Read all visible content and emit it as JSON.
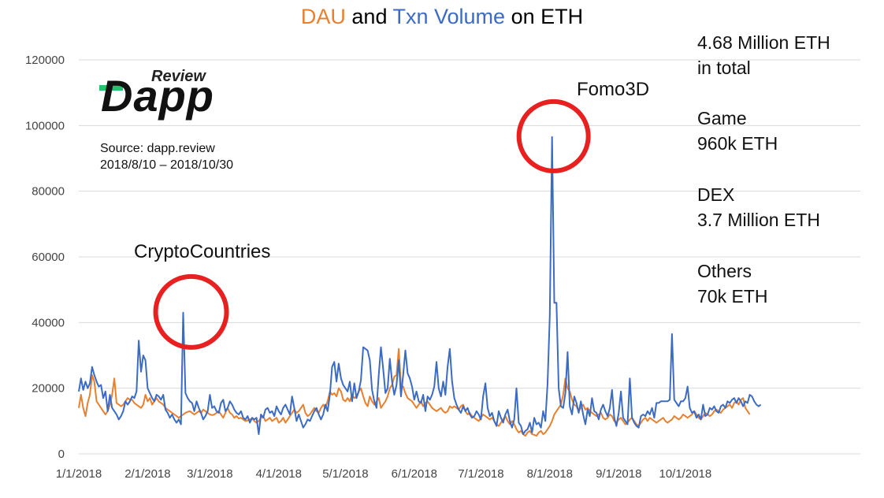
{
  "title": {
    "part1": "DAU",
    "part2": " and ",
    "part3": "Txn Volume",
    "part4": " on ETH"
  },
  "logo": {
    "mark": "Dapp",
    "sub": "Review"
  },
  "source": {
    "line1": "Source: dapp.review",
    "line2": "2018/8/10 – 2018/10/30"
  },
  "annotations": [
    {
      "text": "CryptoCountries"
    },
    {
      "text": "Fomo3D"
    }
  ],
  "info": {
    "total_line1": "4.68 Million ETH",
    "total_line2": "in total",
    "game_line1": "Game",
    "game_line2": "960k ETH",
    "dex_line1": "DEX",
    "dex_line2": "3.7 Million  ETH",
    "others_line1": "Others",
    "others_line2": "70k ETH"
  },
  "colors": {
    "dau": "#E8802F",
    "txn": "#3C6BC4",
    "highlight": "#E8201F",
    "grid": "#D9D9D9",
    "logo_accent": "#23C36F"
  },
  "chart_data": {
    "type": "line",
    "title": "DAU and Txn Volume on ETH",
    "ylim": [
      0,
      120000
    ],
    "yticks": [
      "0",
      "20000",
      "40000",
      "60000",
      "80000",
      "100000",
      "120000"
    ],
    "xticks": [
      "1/1/2018",
      "2/1/2018",
      "3/1/2018",
      "4/1/2018",
      "5/1/2018",
      "6/1/2018",
      "7/1/2018",
      "8/1/2018",
      "9/1/2018",
      "10/1/2018"
    ],
    "grid": true,
    "x_start": "2018-01-01",
    "series": [
      {
        "name": "DAU",
        "values": [
          14000,
          18000,
          14000,
          11500,
          15500,
          18000,
          24000,
          22000,
          16000,
          15000,
          14000,
          13000,
          12000,
          13000,
          15000,
          18000,
          23000,
          15500,
          15000,
          14500,
          15000,
          16000,
          17000,
          16500,
          16500,
          15500,
          15000,
          14500,
          14000,
          15000,
          18000,
          16000,
          17000,
          15000,
          16000,
          17000,
          16000,
          15500,
          15000,
          14000,
          13500,
          13000,
          12500,
          12000,
          11500,
          11000,
          11500,
          12000,
          12500,
          12800,
          13000,
          12500,
          12000,
          12500,
          13000,
          12500,
          13500,
          13000,
          12500,
          12000,
          11800,
          12000,
          12500,
          13000,
          12000,
          11000,
          12500,
          14000,
          12500,
          12000,
          11000,
          11500,
          10800,
          11000,
          10500,
          10000,
          10200,
          10500,
          10800,
          10000,
          9500,
          10000,
          11000,
          11500,
          10000,
          10500,
          11000,
          10000,
          10500,
          11000,
          9500,
          10000,
          11000,
          9500,
          10500,
          11500,
          12500,
          13500,
          12500,
          13000,
          14000,
          15000,
          12500,
          11500,
          12000,
          13000,
          14000,
          13000,
          12500,
          14000,
          15000,
          14000,
          16000,
          19000,
          18000,
          18500,
          17500,
          20000,
          19000,
          16500,
          16000,
          17000,
          16000,
          18000,
          17000,
          17500,
          19000,
          20000,
          17500,
          15500,
          14500,
          17500,
          16000,
          15000,
          16000,
          17000,
          14000,
          15000,
          16000,
          17500,
          20000,
          21000,
          23500,
          24000,
          32000,
          21000,
          20500,
          18500,
          17000,
          16500,
          16000,
          15000,
          14000,
          15000,
          16000,
          14500,
          15500,
          16000,
          15000,
          14000,
          13500,
          13000,
          13500,
          14000,
          13000,
          12500,
          13000,
          14500,
          14000,
          14500,
          14000,
          13500,
          14500,
          15000,
          13000,
          12000,
          12500,
          11500,
          11000,
          10500,
          10000,
          11000,
          12000,
          11500,
          11000,
          10500,
          11000,
          10000,
          9000,
          8500,
          9500,
          10500,
          11500,
          10000,
          9000,
          10000,
          9000,
          7500,
          6500,
          7000,
          6000,
          5500,
          6500,
          7000,
          6000,
          5800,
          5500,
          6500,
          7000,
          6000,
          6500,
          7500,
          8500,
          10000,
          12000,
          13000,
          14000,
          15000,
          18000,
          23000,
          20000,
          19000,
          16500,
          15000,
          14500,
          13000,
          14000,
          15000,
          13500,
          14000,
          13000,
          12500,
          12000,
          11500,
          12000,
          12500,
          11000,
          10500,
          11000,
          12000,
          11500,
          10000,
          9500,
          10500,
          11000,
          10000,
          9000,
          9500,
          10500,
          11000,
          10000,
          9000,
          8500,
          9500,
          10500,
          11000,
          10000,
          11000,
          10500,
          10000,
          9500,
          10000,
          10500,
          11000,
          10000,
          9500,
          10000,
          10500,
          11500,
          11000,
          10500,
          11000,
          12000,
          11500,
          11000,
          11500,
          12000,
          13000,
          12000,
          11000,
          10500,
          11500,
          12500,
          12000,
          11500,
          12000,
          13000,
          13500,
          13000,
          12500,
          13500,
          14000,
          14500,
          15000,
          14000,
          15500,
          16000,
          15000,
          16500,
          17000,
          14000,
          13000,
          12000
        ]
      },
      {
        "name": "Txn Volume",
        "values": [
          19000,
          23000,
          19500,
          22000,
          20000,
          21500,
          26500,
          24000,
          22000,
          20500,
          21000,
          17000,
          19000,
          13000,
          18000,
          14000,
          13000,
          12000,
          10500,
          11500,
          13000,
          16000,
          15000,
          16000,
          17500,
          17000,
          19000,
          34500,
          25000,
          30000,
          28500,
          20000,
          18500,
          17000,
          16000,
          18000,
          17500,
          16500,
          18000,
          13500,
          12500,
          11000,
          12000,
          10500,
          9500,
          10500,
          9000,
          43000,
          18500,
          17000,
          16000,
          15500,
          13000,
          16000,
          14000,
          12500,
          10500,
          11500,
          13000,
          18000,
          14000,
          14500,
          13000,
          12500,
          15500,
          16500,
          13000,
          14000,
          16000,
          15000,
          13500,
          12500,
          12000,
          13000,
          11000,
          10500,
          11500,
          9500,
          11000,
          10500,
          11000,
          6000,
          12000,
          11000,
          13500,
          14000,
          12500,
          13000,
          11500,
          14500,
          13000,
          12000,
          14000,
          15000,
          13500,
          12000,
          17500,
          14000,
          10000,
          12000,
          10000,
          8000,
          9000,
          10500,
          10000,
          11500,
          13000,
          14000,
          12000,
          10500,
          12000,
          15000,
          13000,
          18000,
          26500,
          28000,
          22000,
          27500,
          23000,
          21000,
          20000,
          19000,
          22000,
          16000,
          21500,
          17000,
          19000,
          22500,
          32500,
          32000,
          31500,
          28500,
          19500,
          16000,
          14000,
          24000,
          32500,
          26000,
          18500,
          20000,
          29000,
          22000,
          18000,
          21000,
          28500,
          17500,
          24000,
          31500,
          24500,
          23000,
          20500,
          16500,
          19000,
          16000,
          15500,
          18000,
          13000,
          17500,
          16500,
          18000,
          20500,
          28000,
          20000,
          17500,
          22000,
          18000,
          26500,
          32000,
          22000,
          17000,
          15000,
          13500,
          12500,
          14500,
          13000,
          14000,
          12000,
          11000,
          11500,
          13000,
          12000,
          10500,
          17500,
          21500,
          14000,
          11500,
          12500,
          10000,
          8500,
          13000,
          11000,
          9500,
          12000,
          13500,
          10000,
          8000,
          10500,
          20000,
          9500,
          8500,
          6000,
          7000,
          7500,
          9500,
          6500,
          11000,
          9000,
          9500,
          8000,
          13000,
          10000,
          21500,
          42000,
          96500,
          46000,
          46000,
          20000,
          14500,
          14000,
          18500,
          31000,
          14500,
          12000,
          17500,
          15500,
          12500,
          16000,
          12000,
          9000,
          13500,
          11500,
          17000,
          13000,
          12500,
          10500,
          13500,
          15000,
          13000,
          11500,
          14000,
          19500,
          11000,
          8500,
          12500,
          19000,
          11000,
          10000,
          9000,
          23000,
          11000,
          9500,
          8500,
          8000,
          11500,
          12000,
          11500,
          13000,
          12000,
          14000,
          11000,
          15500,
          15500,
          16000,
          16000,
          16000,
          16000,
          16500,
          36500,
          16500,
          15500,
          14500,
          16000,
          16000,
          17000,
          20500,
          14000,
          12500,
          13000,
          11000,
          12000,
          10500,
          15000,
          11500,
          12000,
          14000,
          13500,
          14500,
          13000,
          12500,
          14500,
          15000,
          14000,
          16000,
          15500,
          16500,
          17000,
          15500,
          17000,
          16000,
          14500,
          16000,
          15500,
          18000,
          17500,
          16000,
          15000,
          14500,
          15000
        ]
      }
    ],
    "annotations": [
      "CryptoCountries",
      "Fomo3D"
    ]
  }
}
